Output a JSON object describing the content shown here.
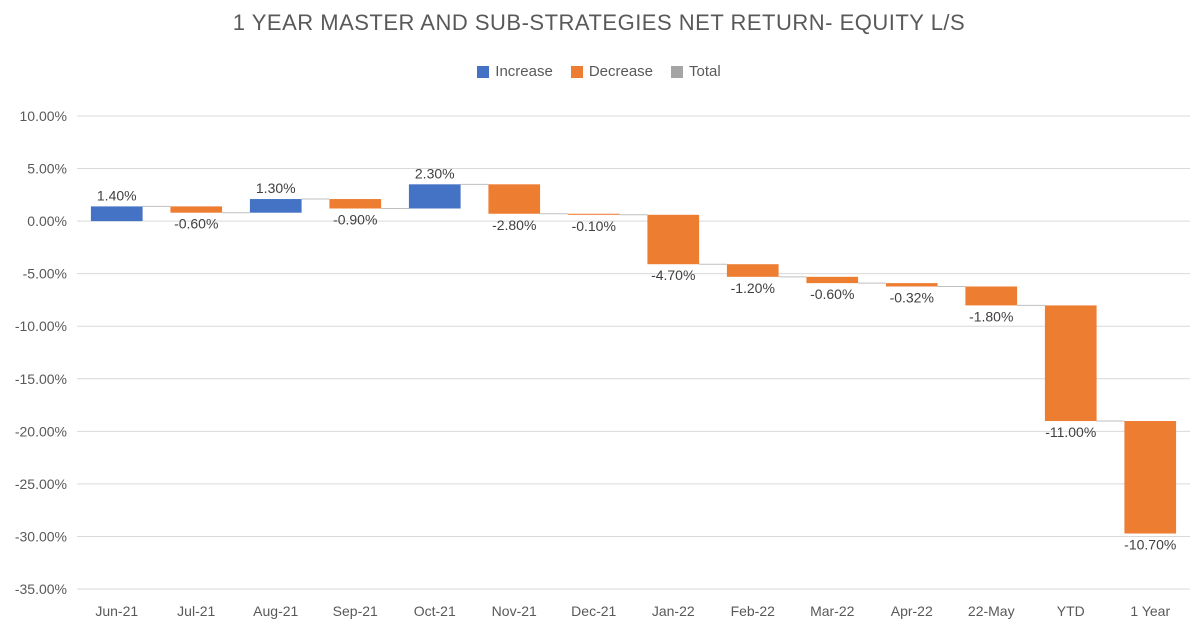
{
  "chart_data": {
    "type": "waterfall",
    "title": "1 YEAR MASTER AND SUB-STRATEGIES NET RETURN- EQUITY L/S",
    "legend": [
      {
        "label": "Increase",
        "color": "#4472C4"
      },
      {
        "label": "Decrease",
        "color": "#ED7D31"
      },
      {
        "label": "Total",
        "color": "#A5A5A5"
      }
    ],
    "legend_position": "top",
    "categories": [
      "Jun-21",
      "Jul-21",
      "Aug-21",
      "Sep-21",
      "Oct-21",
      "Nov-21",
      "Dec-21",
      "Jan-22",
      "Feb-22",
      "Mar-22",
      "Apr-22",
      "22-May",
      "YTD",
      "1 Year"
    ],
    "values": [
      1.4,
      -0.6,
      1.3,
      -0.9,
      2.3,
      -2.8,
      -0.1,
      -4.7,
      -1.2,
      -0.6,
      -0.32,
      -1.8,
      -11.0,
      -10.7
    ],
    "data_labels": [
      "1.40%",
      "-0.60%",
      "1.30%",
      "-0.90%",
      "2.30%",
      "-2.80%",
      "-0.10%",
      "-4.70%",
      "-1.20%",
      "-0.60%",
      "-0.32%",
      "-1.80%",
      "-11.00%",
      "-10.70%"
    ],
    "ylim": [
      -35,
      10
    ],
    "yticks": [
      10,
      5,
      0,
      -5,
      -10,
      -15,
      -20,
      -25,
      -30,
      -35
    ],
    "ytick_labels": [
      "10.00%",
      "5.00%",
      "0.00%",
      "-5.00%",
      "-10.00%",
      "-15.00%",
      "-20.00%",
      "-25.00%",
      "-30.00%",
      "-35.00%"
    ],
    "grid": true,
    "connector_lines": true
  }
}
